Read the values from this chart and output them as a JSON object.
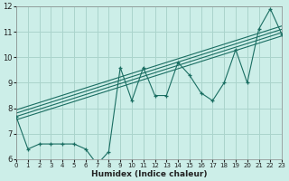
{
  "title": "",
  "xlabel": "Humidex (Indice chaleur)",
  "xlim": [
    0,
    23
  ],
  "ylim": [
    6,
    12
  ],
  "xticks": [
    0,
    1,
    2,
    3,
    4,
    5,
    6,
    7,
    8,
    9,
    10,
    11,
    12,
    13,
    14,
    15,
    16,
    17,
    18,
    19,
    20,
    21,
    22,
    23
  ],
  "yticks": [
    6,
    7,
    8,
    9,
    10,
    11,
    12
  ],
  "bg_color": "#cceee8",
  "grid_color": "#aad4cc",
  "line_color": "#1a6e62",
  "scatter_x": [
    0,
    1,
    2,
    3,
    4,
    5,
    6,
    7,
    8,
    9,
    10,
    11,
    12,
    13,
    14,
    15,
    16,
    17,
    18,
    19,
    20,
    21,
    22,
    23
  ],
  "scatter_y": [
    7.65,
    6.4,
    6.6,
    6.6,
    6.6,
    6.6,
    6.4,
    5.8,
    6.3,
    9.6,
    8.3,
    9.6,
    8.5,
    8.5,
    9.8,
    9.3,
    8.6,
    8.3,
    9.0,
    10.3,
    9.0,
    11.1,
    11.9,
    10.9
  ],
  "reg_lines": [
    {
      "slope": 0.143,
      "intercept": 7.55
    },
    {
      "slope": 0.143,
      "intercept": 7.68
    },
    {
      "slope": 0.143,
      "intercept": 7.81
    },
    {
      "slope": 0.143,
      "intercept": 7.94
    }
  ]
}
